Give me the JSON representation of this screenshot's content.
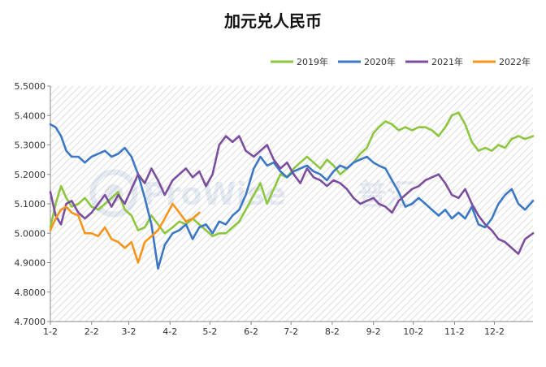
{
  "chart_data": {
    "type": "line",
    "title": "加元兑人民币",
    "xlabel": "",
    "ylabel": "",
    "ylim": [
      4.7,
      5.5
    ],
    "y_ticks": [
      "5.5000",
      "5.4000",
      "5.3000",
      "5.2000",
      "5.1000",
      "5.0000",
      "4.9000",
      "4.8000",
      "4.7000"
    ],
    "x_tick_labels": [
      "1-2",
      "2-2",
      "3-2",
      "4-2",
      "5-2",
      "6-2",
      "7-2",
      "8-2",
      "9-2",
      "10-2",
      "11-2",
      "12-2"
    ],
    "grid": "hatched background",
    "legend_position": "top-right",
    "series": [
      {
        "name": "2019年",
        "color": "#8dc63f",
        "points": [
          [
            "1-2",
            5.02
          ],
          [
            "1-6",
            5.1
          ],
          [
            "1-10",
            5.16
          ],
          [
            "1-14",
            5.12
          ],
          [
            "1-18",
            5.09
          ],
          [
            "1-23",
            5.1
          ],
          [
            "1-28",
            5.12
          ],
          [
            "2-2",
            5.09
          ],
          [
            "2-7",
            5.08
          ],
          [
            "2-12",
            5.1
          ],
          [
            "2-17",
            5.12
          ],
          [
            "2-22",
            5.14
          ],
          [
            "2-27",
            5.08
          ],
          [
            "3-4",
            5.06
          ],
          [
            "3-9",
            5.01
          ],
          [
            "3-14",
            5.02
          ],
          [
            "3-19",
            5.06
          ],
          [
            "3-24",
            5.03
          ],
          [
            "3-29",
            5.0
          ],
          [
            "4-4",
            5.02
          ],
          [
            "4-9",
            5.04
          ],
          [
            "4-14",
            5.03
          ],
          [
            "4-19",
            5.05
          ],
          [
            "4-24",
            5.03
          ],
          [
            "4-29",
            5.01
          ],
          [
            "5-4",
            4.99
          ],
          [
            "5-9",
            5.0
          ],
          [
            "5-14",
            5.0
          ],
          [
            "5-19",
            5.02
          ],
          [
            "5-24",
            5.04
          ],
          [
            "5-29",
            5.08
          ],
          [
            "6-4",
            5.13
          ],
          [
            "6-9",
            5.17
          ],
          [
            "6-14",
            5.1
          ],
          [
            "6-19",
            5.15
          ],
          [
            "6-24",
            5.2
          ],
          [
            "6-29",
            5.19
          ],
          [
            "7-4",
            5.22
          ],
          [
            "7-9",
            5.24
          ],
          [
            "7-14",
            5.26
          ],
          [
            "7-19",
            5.24
          ],
          [
            "7-24",
            5.22
          ],
          [
            "7-29",
            5.25
          ],
          [
            "8-3",
            5.23
          ],
          [
            "8-8",
            5.2
          ],
          [
            "8-13",
            5.22
          ],
          [
            "8-18",
            5.24
          ],
          [
            "8-23",
            5.27
          ],
          [
            "8-28",
            5.29
          ],
          [
            "9-2",
            5.34
          ],
          [
            "9-6",
            5.36
          ],
          [
            "9-11",
            5.38
          ],
          [
            "9-16",
            5.37
          ],
          [
            "9-21",
            5.35
          ],
          [
            "9-26",
            5.36
          ],
          [
            "10-1",
            5.35
          ],
          [
            "10-6",
            5.36
          ],
          [
            "10-11",
            5.36
          ],
          [
            "10-16",
            5.35
          ],
          [
            "10-21",
            5.33
          ],
          [
            "10-26",
            5.36
          ],
          [
            "10-31",
            5.4
          ],
          [
            "11-5",
            5.41
          ],
          [
            "11-10",
            5.37
          ],
          [
            "11-15",
            5.31
          ],
          [
            "11-20",
            5.28
          ],
          [
            "11-25",
            5.29
          ],
          [
            "11-30",
            5.28
          ],
          [
            "12-5",
            5.3
          ],
          [
            "12-10",
            5.29
          ],
          [
            "12-15",
            5.32
          ],
          [
            "12-20",
            5.33
          ],
          [
            "12-25",
            5.32
          ],
          [
            "12-31",
            5.33
          ]
        ]
      },
      {
        "name": "2020年",
        "color": "#3c78c3",
        "points": [
          [
            "1-2",
            5.37
          ],
          [
            "1-6",
            5.36
          ],
          [
            "1-10",
            5.33
          ],
          [
            "1-14",
            5.28
          ],
          [
            "1-18",
            5.26
          ],
          [
            "1-23",
            5.26
          ],
          [
            "1-28",
            5.24
          ],
          [
            "2-2",
            5.26
          ],
          [
            "2-7",
            5.27
          ],
          [
            "2-12",
            5.28
          ],
          [
            "2-17",
            5.26
          ],
          [
            "2-22",
            5.27
          ],
          [
            "2-27",
            5.29
          ],
          [
            "3-4",
            5.26
          ],
          [
            "3-9",
            5.2
          ],
          [
            "3-14",
            5.12
          ],
          [
            "3-19",
            5.03
          ],
          [
            "3-24",
            4.88
          ],
          [
            "3-29",
            4.96
          ],
          [
            "4-4",
            5.0
          ],
          [
            "4-9",
            5.01
          ],
          [
            "4-14",
            5.03
          ],
          [
            "4-19",
            4.98
          ],
          [
            "4-24",
            5.02
          ],
          [
            "4-29",
            5.03
          ],
          [
            "5-4",
            5.0
          ],
          [
            "5-9",
            5.04
          ],
          [
            "5-14",
            5.03
          ],
          [
            "5-19",
            5.06
          ],
          [
            "5-24",
            5.08
          ],
          [
            "5-29",
            5.13
          ],
          [
            "6-4",
            5.22
          ],
          [
            "6-9",
            5.26
          ],
          [
            "6-14",
            5.23
          ],
          [
            "6-19",
            5.24
          ],
          [
            "6-24",
            5.21
          ],
          [
            "6-29",
            5.19
          ],
          [
            "7-4",
            5.21
          ],
          [
            "7-9",
            5.22
          ],
          [
            "7-14",
            5.23
          ],
          [
            "7-19",
            5.21
          ],
          [
            "7-24",
            5.2
          ],
          [
            "7-29",
            5.18
          ],
          [
            "8-3",
            5.21
          ],
          [
            "8-8",
            5.23
          ],
          [
            "8-13",
            5.22
          ],
          [
            "8-18",
            5.24
          ],
          [
            "8-23",
            5.25
          ],
          [
            "8-28",
            5.26
          ],
          [
            "9-2",
            5.24
          ],
          [
            "9-6",
            5.23
          ],
          [
            "9-11",
            5.22
          ],
          [
            "9-16",
            5.18
          ],
          [
            "9-21",
            5.14
          ],
          [
            "9-26",
            5.09
          ],
          [
            "10-1",
            5.1
          ],
          [
            "10-6",
            5.12
          ],
          [
            "10-11",
            5.1
          ],
          [
            "10-16",
            5.08
          ],
          [
            "10-21",
            5.06
          ],
          [
            "10-26",
            5.08
          ],
          [
            "10-31",
            5.05
          ],
          [
            "11-5",
            5.07
          ],
          [
            "11-10",
            5.05
          ],
          [
            "11-15",
            5.09
          ],
          [
            "11-20",
            5.03
          ],
          [
            "11-25",
            5.02
          ],
          [
            "11-30",
            5.05
          ],
          [
            "12-5",
            5.1
          ],
          [
            "12-10",
            5.13
          ],
          [
            "12-15",
            5.15
          ],
          [
            "12-20",
            5.1
          ],
          [
            "12-25",
            5.08
          ],
          [
            "12-31",
            5.11
          ]
        ]
      },
      {
        "name": "2021年",
        "color": "#7b4e9e",
        "points": [
          [
            "1-2",
            5.14
          ],
          [
            "1-6",
            5.06
          ],
          [
            "1-10",
            5.03
          ],
          [
            "1-14",
            5.1
          ],
          [
            "1-18",
            5.11
          ],
          [
            "1-23",
            5.07
          ],
          [
            "1-28",
            5.05
          ],
          [
            "2-2",
            5.07
          ],
          [
            "2-7",
            5.1
          ],
          [
            "2-12",
            5.13
          ],
          [
            "2-17",
            5.09
          ],
          [
            "2-22",
            5.13
          ],
          [
            "2-27",
            5.1
          ],
          [
            "3-4",
            5.15
          ],
          [
            "3-9",
            5.2
          ],
          [
            "3-14",
            5.17
          ],
          [
            "3-19",
            5.22
          ],
          [
            "3-24",
            5.18
          ],
          [
            "3-29",
            5.13
          ],
          [
            "4-4",
            5.18
          ],
          [
            "4-9",
            5.2
          ],
          [
            "4-14",
            5.22
          ],
          [
            "4-19",
            5.19
          ],
          [
            "4-24",
            5.21
          ],
          [
            "4-29",
            5.16
          ],
          [
            "5-4",
            5.2
          ],
          [
            "5-9",
            5.3
          ],
          [
            "5-14",
            5.33
          ],
          [
            "5-19",
            5.31
          ],
          [
            "5-24",
            5.33
          ],
          [
            "5-29",
            5.28
          ],
          [
            "6-4",
            5.26
          ],
          [
            "6-9",
            5.28
          ],
          [
            "6-14",
            5.3
          ],
          [
            "6-19",
            5.25
          ],
          [
            "6-24",
            5.22
          ],
          [
            "6-29",
            5.24
          ],
          [
            "7-4",
            5.2
          ],
          [
            "7-9",
            5.17
          ],
          [
            "7-14",
            5.22
          ],
          [
            "7-19",
            5.19
          ],
          [
            "7-24",
            5.18
          ],
          [
            "7-29",
            5.16
          ],
          [
            "8-3",
            5.18
          ],
          [
            "8-8",
            5.17
          ],
          [
            "8-13",
            5.15
          ],
          [
            "8-18",
            5.12
          ],
          [
            "8-23",
            5.1
          ],
          [
            "8-28",
            5.11
          ],
          [
            "9-2",
            5.12
          ],
          [
            "9-6",
            5.1
          ],
          [
            "9-11",
            5.09
          ],
          [
            "9-16",
            5.07
          ],
          [
            "9-21",
            5.11
          ],
          [
            "9-26",
            5.13
          ],
          [
            "10-1",
            5.15
          ],
          [
            "10-6",
            5.16
          ],
          [
            "10-11",
            5.18
          ],
          [
            "10-16",
            5.19
          ],
          [
            "10-21",
            5.2
          ],
          [
            "10-26",
            5.17
          ],
          [
            "10-31",
            5.13
          ],
          [
            "11-5",
            5.12
          ],
          [
            "11-10",
            5.15
          ],
          [
            "11-15",
            5.1
          ],
          [
            "11-20",
            5.06
          ],
          [
            "11-25",
            5.03
          ],
          [
            "11-30",
            5.01
          ],
          [
            "12-5",
            4.98
          ],
          [
            "12-10",
            4.97
          ],
          [
            "12-15",
            4.95
          ],
          [
            "12-20",
            4.93
          ],
          [
            "12-25",
            4.98
          ],
          [
            "12-31",
            5.0
          ]
        ]
      },
      {
        "name": "2022年",
        "color": "#f7941d",
        "points": [
          [
            "1-2",
            5.01
          ],
          [
            "1-6",
            5.05
          ],
          [
            "1-10",
            5.08
          ],
          [
            "1-14",
            5.09
          ],
          [
            "1-18",
            5.07
          ],
          [
            "1-23",
            5.06
          ],
          [
            "1-28",
            5.0
          ],
          [
            "2-2",
            5.0
          ],
          [
            "2-7",
            4.99
          ],
          [
            "2-12",
            5.02
          ],
          [
            "2-17",
            4.98
          ],
          [
            "2-22",
            4.97
          ],
          [
            "2-27",
            4.95
          ],
          [
            "3-4",
            4.97
          ],
          [
            "3-9",
            4.9
          ],
          [
            "3-14",
            4.97
          ],
          [
            "3-19",
            4.99
          ],
          [
            "3-24",
            5.01
          ],
          [
            "3-29",
            5.05
          ],
          [
            "4-4",
            5.1
          ],
          [
            "4-9",
            5.07
          ],
          [
            "4-14",
            5.04
          ],
          [
            "4-19",
            5.05
          ],
          [
            "4-24",
            5.07
          ]
        ]
      }
    ]
  },
  "watermark": "ProWise",
  "watermark_cn": "普汇"
}
